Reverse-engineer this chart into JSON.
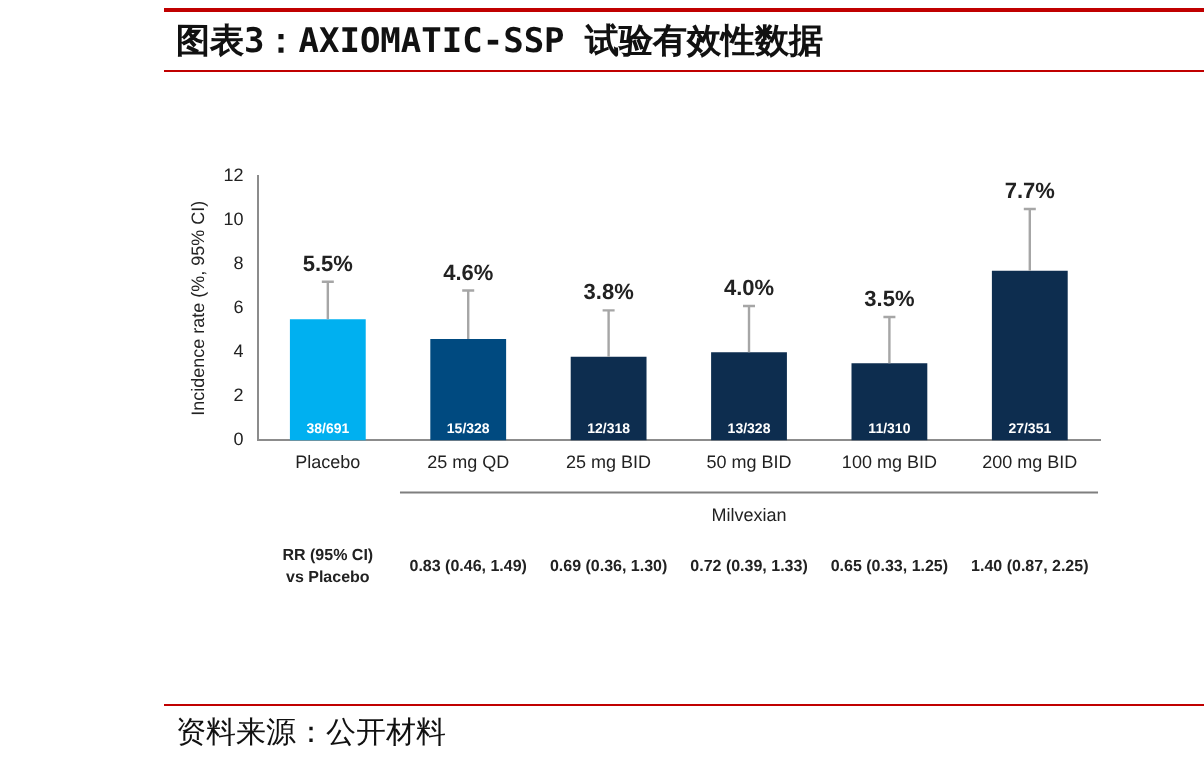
{
  "chart_data": {
    "type": "bar",
    "title": "图表3：AXIOMATIC-SSP 试验有效性数据",
    "ylabel": "Incidence rate (%, 95% CI)",
    "categories": [
      "Placebo",
      "25 mg QD",
      "25 mg BID",
      "50 mg BID",
      "100 mg BID",
      "200 mg BID"
    ],
    "values": [
      5.5,
      4.6,
      3.8,
      4.0,
      3.5,
      7.7
    ],
    "colors": [
      "#00b0f0",
      "#004a80",
      "#0d2d4f",
      "#0d2d4f",
      "#0d2d4f",
      "#0d2d4f"
    ],
    "errors": [
      [
        5.5,
        7.2
      ],
      [
        4.6,
        6.8
      ],
      [
        3.8,
        5.9
      ],
      [
        4.0,
        6.1
      ],
      [
        3.5,
        5.6
      ],
      [
        7.7,
        10.5
      ]
    ],
    "value_labels": [
      "5.5%",
      "4.6%",
      "3.8%",
      "4.0%",
      "3.5%",
      "7.7%"
    ],
    "ylim": [
      0,
      12
    ],
    "yticks": [
      0,
      2,
      4,
      6,
      8,
      10,
      12
    ],
    "grid": false,
    "legend": false,
    "annotations": [
      {
        "text": "38/691",
        "x": "Placebo",
        "y": 0
      },
      {
        "text": "15/328",
        "x": "25 mg QD",
        "y": 0
      },
      {
        "text": "12/318",
        "x": "25 mg BID",
        "y": 0
      },
      {
        "text": "13/328",
        "x": "50 mg BID",
        "y": 0
      },
      {
        "text": "11/310",
        "x": "100 mg BID",
        "y": 0
      },
      {
        "text": "27/351",
        "x": "200 mg BID",
        "y": 0
      },
      "Milvexian",
      "RR (95% CI)\nvs Placebo",
      "0.83 (0.46, 1.49)",
      "0.69 (0.36, 1.30)",
      "0.72 (0.39, 1.33)",
      "0.65 (0.33, 1.25)",
      "1.40 (0.87, 2.25)",
      "资料来源：公开材料"
    ]
  }
}
